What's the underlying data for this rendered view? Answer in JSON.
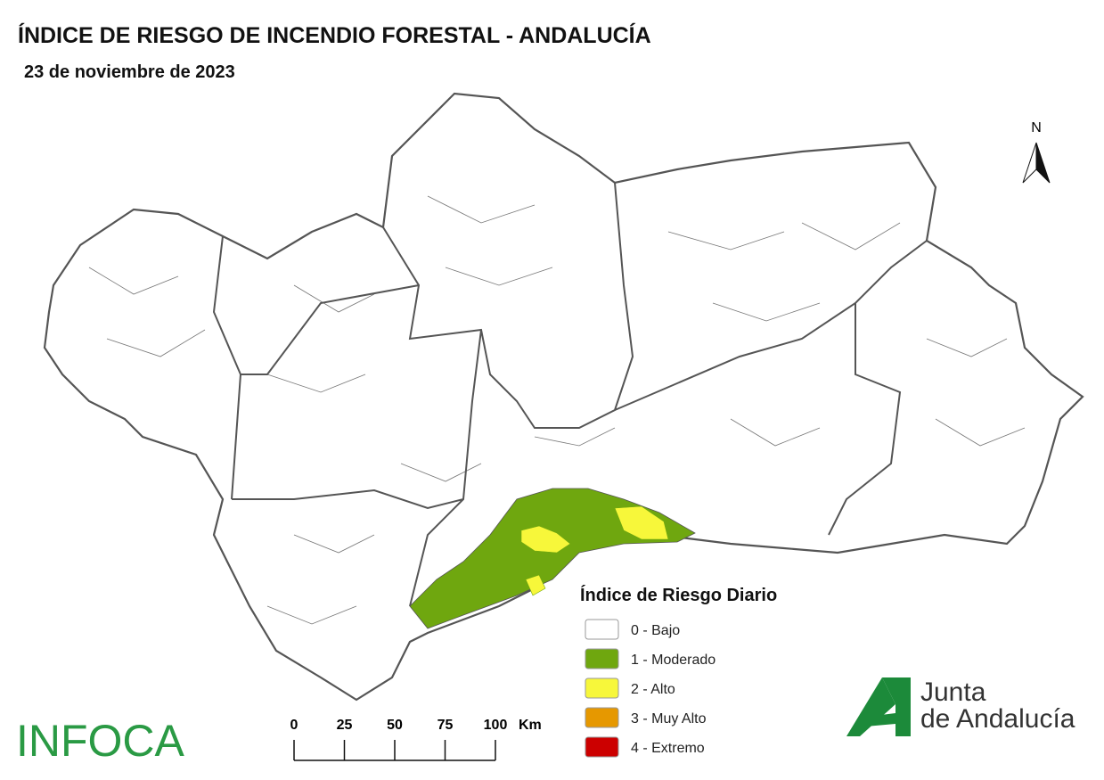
{
  "header": {
    "title": "ÍNDICE DE RIESGO DE INCENDIO FORESTAL - ANDALUCÍA",
    "date": "23 de noviembre de 2023"
  },
  "north_arrow": "N",
  "legend": {
    "title": "Índice de Riesgo Diario",
    "items": [
      {
        "label": "0 - Bajo",
        "color": "#ffffff"
      },
      {
        "label": "1 - Moderado",
        "color": "#6fa70f"
      },
      {
        "label": "2 - Alto",
        "color": "#f7f73a"
      },
      {
        "label": "3 - Muy Alto",
        "color": "#e69800"
      },
      {
        "label": "4 - Extremo",
        "color": "#cc0000"
      }
    ]
  },
  "scale_bar": {
    "ticks": [
      "0",
      "25",
      "50",
      "75",
      "100"
    ],
    "unit": "Km"
  },
  "logos": {
    "infoca": "INFOCA",
    "junta_line1": "Junta",
    "junta_line2": "de Andalucía"
  }
}
